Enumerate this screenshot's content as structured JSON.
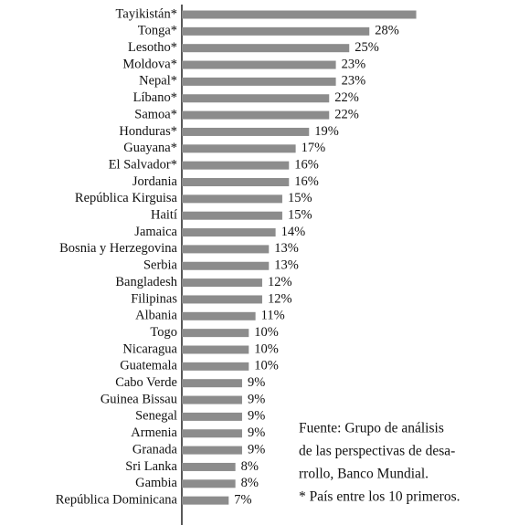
{
  "chart_data": {
    "type": "bar",
    "orientation": "horizontal",
    "categories": [
      "Tayikistán*",
      "Tonga*",
      "Lesotho*",
      "Moldova*",
      "Nepal*",
      "Líbano*",
      "Samoa*",
      "Honduras*",
      "Guayana*",
      "El Salvador*",
      "Jordania",
      "República Kirguisa",
      "Haití",
      "Jamaica",
      "Bosnia y Herzegovina",
      "Serbia",
      "Bangladesh",
      "Filipinas",
      "Albania",
      "Togo",
      "Nicaragua",
      "Guatemala",
      "Cabo Verde",
      "Guinea Bissau",
      "Senegal",
      "Armenia",
      "Granada",
      "Sri Lanka",
      "Gambia",
      "República Dominicana"
    ],
    "values": [
      35,
      28,
      25,
      23,
      23,
      22,
      22,
      19,
      17,
      16,
      16,
      15,
      15,
      14,
      13,
      13,
      12,
      12,
      11,
      10,
      10,
      10,
      9,
      9,
      9,
      9,
      9,
      8,
      8,
      7
    ],
    "value_labels": [
      null,
      "28%",
      "25%",
      "23%",
      "23%",
      "22%",
      "22%",
      "19%",
      "17%",
      "16%",
      "16%",
      "15%",
      "15%",
      "14%",
      "13%",
      "13%",
      "12%",
      "12%",
      "11%",
      "10%",
      "10%",
      "10%",
      "9%",
      "9%",
      "9%",
      "9%",
      "9%",
      "8%",
      "8%",
      "7%"
    ],
    "color": "#8c8c8c",
    "notes": [
      "Fuente: Grupo de análisis",
      "de las perspectivas de desa-",
      "rrollo, Banco Mundial.",
      "* País entre los 10 primeros."
    ]
  }
}
